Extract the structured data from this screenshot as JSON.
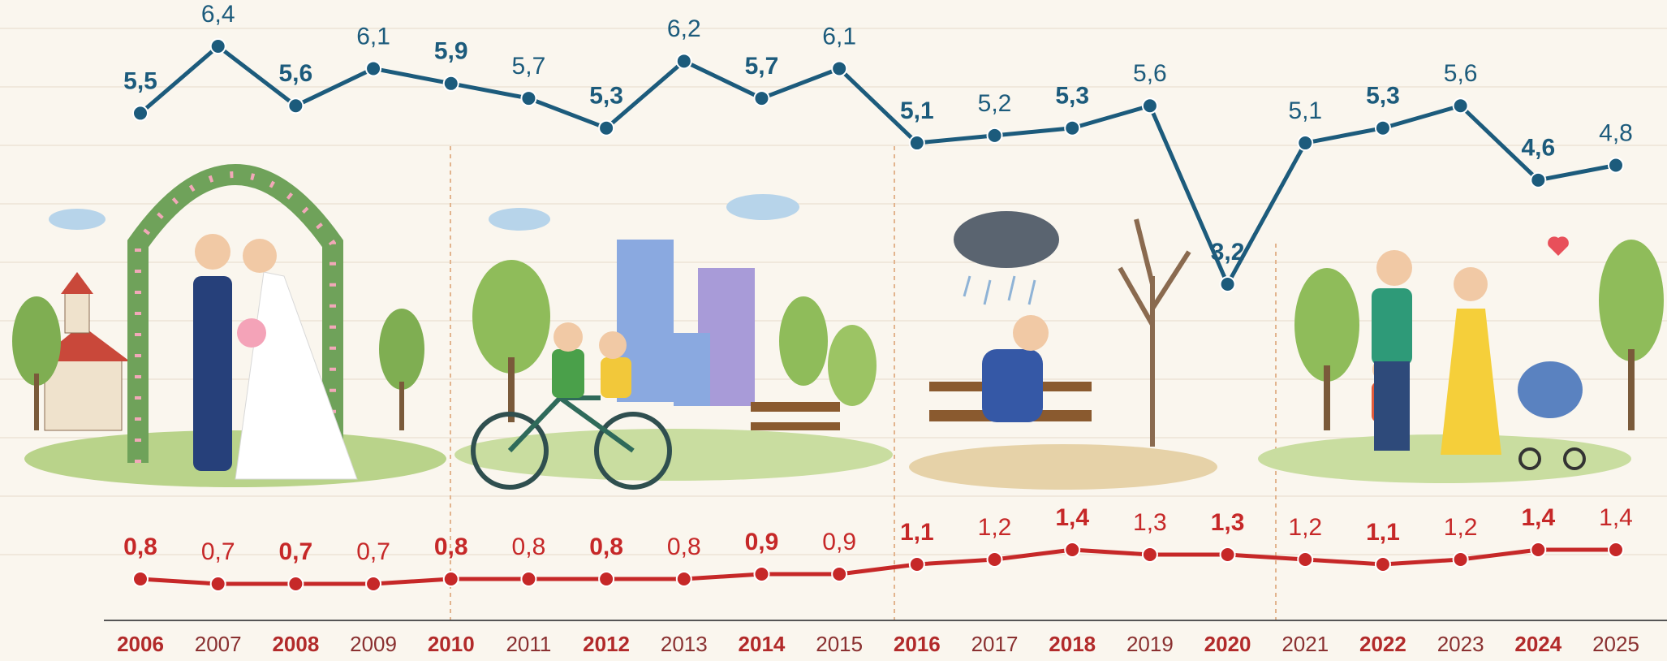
{
  "chart_data": {
    "type": "line",
    "categories": [
      "2006",
      "2007",
      "2008",
      "2009",
      "2010",
      "2011",
      "2012",
      "2013",
      "2014",
      "2015",
      "2016",
      "2017",
      "2018",
      "2019",
      "2020",
      "2021",
      "2022",
      "2023",
      "2024",
      "2025"
    ],
    "series": [
      {
        "color": "#1c5b7c",
        "values": [
          5.5,
          6.4,
          5.6,
          6.1,
          5.9,
          5.7,
          5.3,
          6.2,
          5.7,
          6.1,
          5.1,
          5.2,
          5.3,
          5.6,
          3.2,
          5.1,
          5.3,
          5.6,
          4.6,
          4.8
        ],
        "value_labels": [
          "5,5",
          "6,4",
          "5,6",
          "6,1",
          "5,9",
          "5,7",
          "5,3",
          "6,2",
          "5,7",
          "6,1",
          "5,1",
          "5,2",
          "5,3",
          "5,6",
          "3,2",
          "5,1",
          "5,3",
          "5,6",
          "4,6",
          "4,8"
        ]
      },
      {
        "color": "#c62828",
        "values": [
          0.8,
          0.7,
          0.7,
          0.7,
          0.8,
          0.8,
          0.8,
          0.8,
          0.9,
          0.9,
          1.1,
          1.2,
          1.4,
          1.3,
          1.3,
          1.2,
          1.1,
          1.2,
          1.4,
          1.4
        ],
        "value_labels": [
          "0,8",
          "0,7",
          "0,7",
          "0,7",
          "0,8",
          "0,8",
          "0,8",
          "0,8",
          "0,9",
          "0,9",
          "1,1",
          "1,2",
          "1,4",
          "1,3",
          "1,3",
          "1,2",
          "1,1",
          "1,2",
          "1,4",
          "1,4"
        ]
      }
    ]
  }
}
